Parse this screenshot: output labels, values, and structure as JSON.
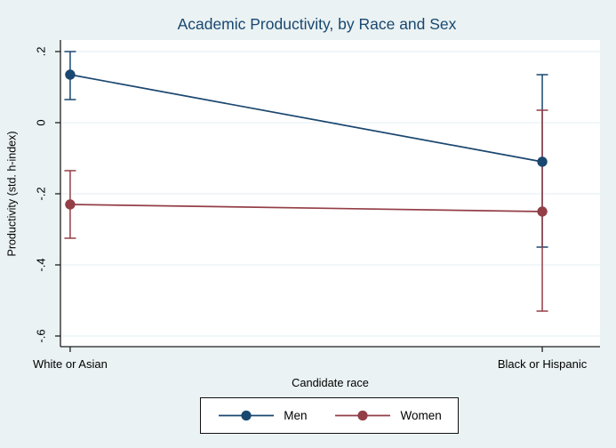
{
  "chart_data": {
    "type": "line",
    "title": "Academic Productivity, by Race and Sex",
    "xlabel": "Candidate race",
    "ylabel": "Productivity (std. h-index)",
    "categories": [
      "White or Asian",
      "Black or Hispanic"
    ],
    "series": [
      {
        "name": "Men",
        "color": "#1a476f",
        "values": [
          0.135,
          -0.11
        ],
        "ci_high": [
          0.2,
          0.135
        ],
        "ci_low": [
          0.065,
          -0.35
        ]
      },
      {
        "name": "Women",
        "color": "#943e47",
        "values": [
          -0.23,
          -0.25
        ],
        "ci_high": [
          -0.135,
          0.035
        ],
        "ci_low": [
          -0.325,
          -0.53
        ]
      }
    ],
    "yaxis": {
      "ticks": [
        0.2,
        0,
        -0.2,
        -0.4,
        -0.6
      ],
      "tick_labels": [
        ".2",
        "0",
        "-.2",
        "-.4",
        "-.6"
      ],
      "range": [
        -0.63,
        0.2325
      ]
    },
    "legend": {
      "position": "bottom",
      "entries": [
        "Men",
        "Women"
      ]
    },
    "grid": true
  },
  "colors": {
    "background": "#eaf2f3",
    "plot_background": "#ffffff",
    "gridline": "#e3edf1",
    "axis": "#1f1f1f",
    "text": "#000000",
    "title": "#1a476f"
  }
}
